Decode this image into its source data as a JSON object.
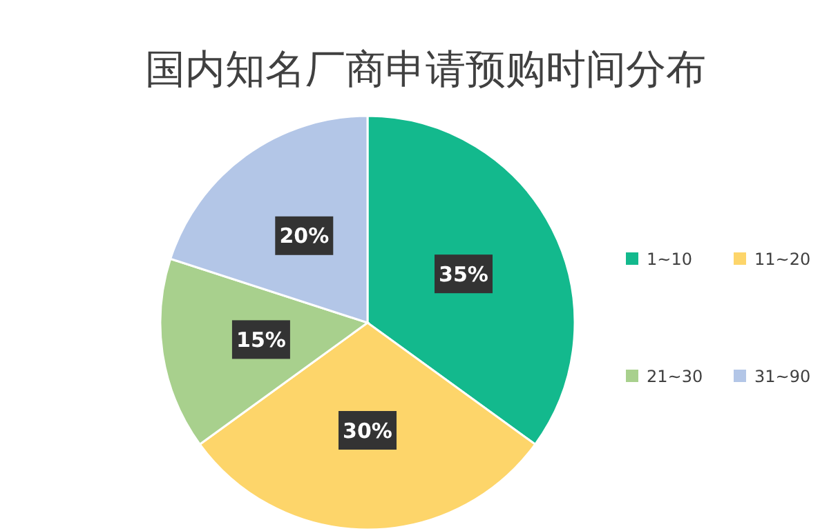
{
  "chart_data": {
    "type": "pie",
    "title": "国内知名厂商申请预购时间分布",
    "categories": [
      "1~10",
      "11~20",
      "21~30",
      "31~90"
    ],
    "values": [
      35,
      30,
      15,
      20
    ],
    "colors": [
      "#13b98d",
      "#fdd56a",
      "#a8d08d",
      "#b3c6e7"
    ],
    "value_labels": [
      "35%",
      "30%",
      "15%",
      "20%"
    ],
    "legend": "right"
  }
}
